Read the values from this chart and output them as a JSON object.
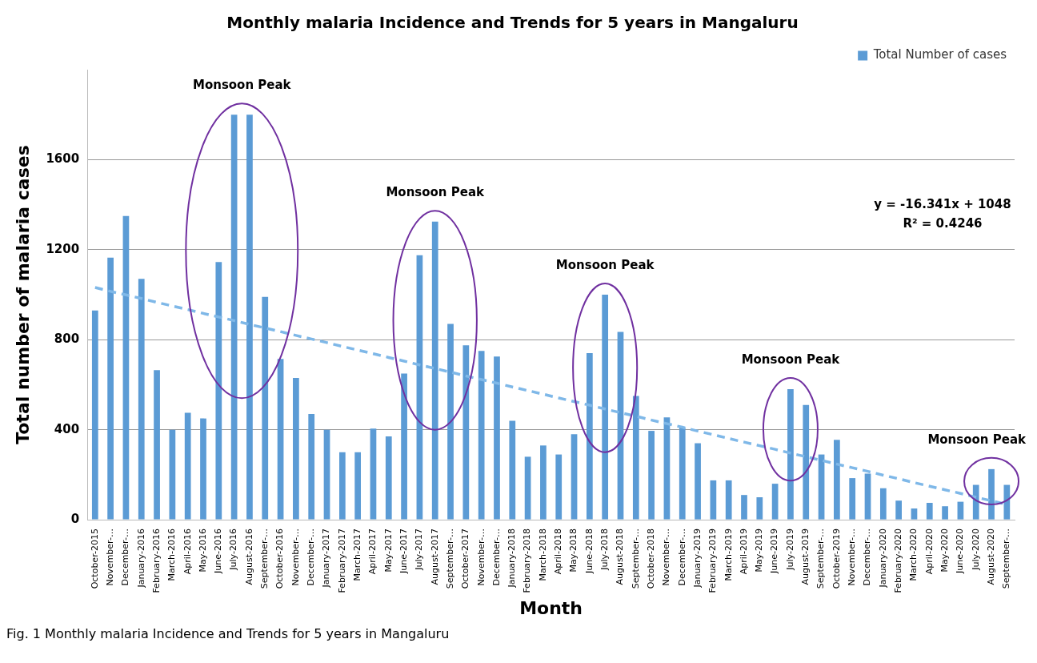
{
  "chart_data": {
    "type": "bar",
    "title": "Monthly malaria Incidence and Trends for 5 years in Mangaluru",
    "xlabel": "Month",
    "ylabel": "Total number of malaria cases",
    "categories": [
      "October-2015",
      "November-…",
      "December-…",
      "January-2016",
      "February-2016",
      "March-2016",
      "April-2016",
      "May-2016",
      "June-2016",
      "July-2016",
      "August-2016",
      "September-…",
      "October-2016",
      "November-…",
      "December-…",
      "January-2017",
      "February-2017",
      "March-2017",
      "April-2017",
      "May-2017",
      "June-2017",
      "July-2017",
      "August-2017",
      "September-…",
      "October-2017",
      "November-…",
      "December-…",
      "January-2018",
      "February-2018",
      "March-2018",
      "April-2018",
      "May-2018",
      "June-2018",
      "July-2018",
      "August-2018",
      "September-…",
      "October-2018",
      "November-…",
      "December-…",
      "January-2019",
      "February-2019",
      "March-2019",
      "April-2019",
      "May-2019",
      "June-2019",
      "July-2019",
      "August-2019",
      "September-…",
      "October-2019",
      "November-…",
      "December-…",
      "January-2020",
      "February-2020",
      "March-2020",
      "April-2020",
      "May-2020",
      "June-2020",
      "July-2020",
      "August-2020",
      "September-…"
    ],
    "series": [
      {
        "name": "Total Number of cases",
        "color": "#5b9bd5",
        "values": [
          930,
          1165,
          1350,
          1070,
          665,
          400,
          475,
          450,
          1145,
          1800,
          1800,
          990,
          715,
          630,
          470,
          400,
          300,
          300,
          405,
          370,
          650,
          1175,
          1325,
          870,
          775,
          750,
          725,
          440,
          280,
          330,
          290,
          380,
          740,
          1000,
          835,
          550,
          395,
          455,
          410,
          340,
          175,
          175,
          110,
          100,
          160,
          580,
          510,
          290,
          355,
          185,
          205,
          140,
          85,
          50,
          75,
          60,
          80,
          155,
          225,
          155
        ]
      },
      {
        "type": "line",
        "color": "#7fb8e8",
        "line_style": "dashed",
        "values": [
          1032,
          1015,
          999,
          983,
          966,
          950,
          934,
          917,
          901,
          885,
          868,
          852,
          836,
          819,
          803,
          787,
          770,
          754,
          738,
          721,
          705,
          688,
          672,
          656,
          639,
          623,
          607,
          590,
          574,
          558,
          541,
          525,
          509,
          492,
          476,
          460,
          443,
          427,
          411,
          394,
          378,
          361,
          345,
          329,
          313,
          296,
          280,
          264,
          247,
          231,
          215,
          198,
          182,
          165,
          149,
          133,
          117,
          100,
          84,
          68
        ]
      }
    ],
    "ylim": [
      0,
      2000
    ],
    "yticks": [
      0,
      400,
      800,
      1200,
      1600
    ],
    "grid": "y",
    "legend": "top right",
    "annotations": [
      "Monsoon Peak",
      "Monsoon Peak",
      "Monsoon Peak",
      "Monsoon Peak",
      "Monsoon Peak",
      "y = -16.341x + 1048",
      "R² = 0.4246",
      "Fig. 1  Monthly malaria Incidence and Trends for 5 years in Mangaluru"
    ]
  }
}
